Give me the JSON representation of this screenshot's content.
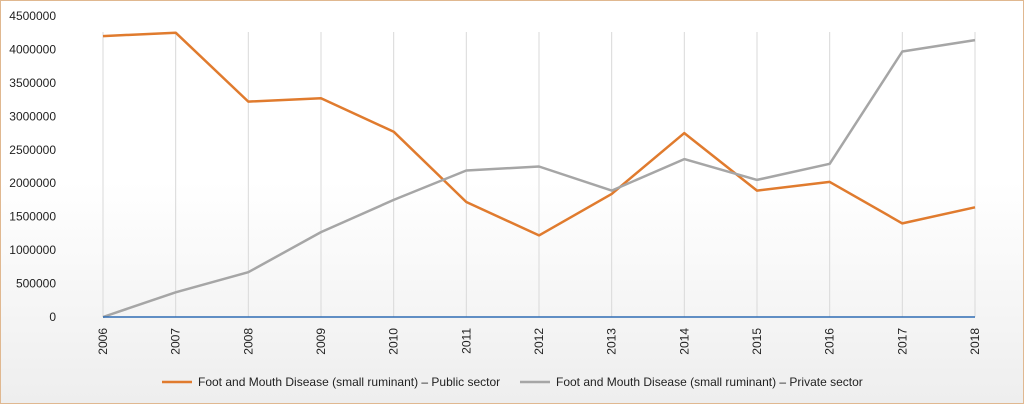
{
  "chart_data": {
    "type": "line",
    "title": "",
    "xlabel": "",
    "ylabel": "",
    "categories": [
      "2006",
      "2007",
      "2008",
      "2009",
      "2010",
      "2011",
      "2012",
      "2013",
      "2014",
      "2015",
      "2016",
      "2017",
      "2018"
    ],
    "ylim": [
      0,
      4500000
    ],
    "yticks": [
      "0",
      "500000",
      "1000000",
      "1500000",
      "2000000",
      "2500000",
      "3000000",
      "3500000",
      "4000000",
      "4500000"
    ],
    "grid": "vertical",
    "legend_position": "bottom",
    "series": [
      {
        "name": "Foot and Mouth Disease (small ruminant) – Public sector",
        "color": "#e07b2e",
        "values": [
          4200000,
          4250000,
          3220000,
          3270000,
          2770000,
          1720000,
          1220000,
          1840000,
          2750000,
          1890000,
          2020000,
          1400000,
          1640000
        ]
      },
      {
        "name": "Foot and Mouth Disease (small ruminant) – Private sector",
        "color": "#a6a6a6",
        "values": [
          0,
          370000,
          670000,
          1270000,
          1750000,
          2190000,
          2250000,
          1890000,
          2360000,
          2050000,
          2290000,
          3970000,
          4140000
        ]
      },
      {
        "name": "",
        "color": "#2e6db4",
        "values": [
          0,
          0,
          0,
          0,
          0,
          0,
          0,
          0,
          0,
          0,
          0,
          0,
          0
        ]
      }
    ]
  }
}
